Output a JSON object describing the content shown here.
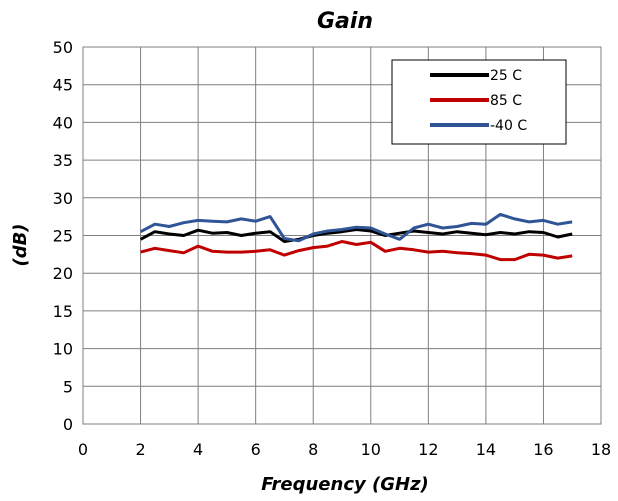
{
  "chart_data": {
    "type": "line",
    "title": "Gain",
    "xlabel": "Frequency (GHz)",
    "ylabel": "(dB)",
    "xlim": [
      0,
      18
    ],
    "ylim": [
      0,
      50
    ],
    "xticks": [
      0,
      2,
      4,
      6,
      8,
      10,
      12,
      14,
      16,
      18
    ],
    "yticks": [
      0,
      5,
      10,
      15,
      20,
      25,
      30,
      35,
      40,
      45,
      50
    ],
    "grid": true,
    "legend_position": "top-right",
    "series": [
      {
        "name": "25 C",
        "color": "#000000",
        "x": [
          2,
          2.5,
          3,
          3.5,
          4,
          4.5,
          5,
          5.5,
          6,
          6.5,
          7,
          7.5,
          8,
          8.5,
          9,
          9.5,
          10,
          10.5,
          11,
          11.5,
          12,
          12.5,
          13,
          13.5,
          14,
          14.5,
          15,
          15.5,
          16,
          16.5,
          17
        ],
        "y": [
          24.5,
          25.5,
          25.2,
          25.0,
          25.7,
          25.3,
          25.4,
          25.0,
          25.3,
          25.5,
          24.2,
          24.5,
          25.0,
          25.3,
          25.5,
          25.8,
          25.6,
          25.0,
          25.3,
          25.6,
          25.4,
          25.2,
          25.5,
          25.3,
          25.1,
          25.4,
          25.2,
          25.5,
          25.4,
          24.8,
          25.2
        ]
      },
      {
        "name": "85 C",
        "color": "#c00000",
        "x": [
          2,
          2.5,
          3,
          3.5,
          4,
          4.5,
          5,
          5.5,
          6,
          6.5,
          7,
          7.5,
          8,
          8.5,
          9,
          9.5,
          10,
          10.5,
          11,
          11.5,
          12,
          12.5,
          13,
          13.5,
          14,
          14.5,
          15,
          15.5,
          16,
          16.5,
          17
        ],
        "y": [
          22.8,
          23.3,
          23.0,
          22.7,
          23.6,
          22.9,
          22.8,
          22.8,
          22.9,
          23.1,
          22.4,
          23.0,
          23.4,
          23.6,
          24.2,
          23.8,
          24.1,
          22.9,
          23.3,
          23.1,
          22.8,
          22.9,
          22.7,
          22.6,
          22.4,
          21.8,
          21.8,
          22.5,
          22.4,
          22.0,
          22.3
        ]
      },
      {
        "name": "-40 C",
        "color": "#2f5597",
        "x": [
          2,
          2.5,
          3,
          3.5,
          4,
          4.5,
          5,
          5.5,
          6,
          6.5,
          7,
          7.5,
          8,
          8.5,
          9,
          9.5,
          10,
          10.5,
          11,
          11.5,
          12,
          12.5,
          13,
          13.5,
          14,
          14.5,
          15,
          15.5,
          16,
          16.5,
          17
        ],
        "y": [
          25.5,
          26.5,
          26.2,
          26.7,
          27.0,
          26.9,
          26.8,
          27.2,
          26.9,
          27.5,
          24.6,
          24.3,
          25.2,
          25.6,
          25.8,
          26.1,
          26.0,
          25.2,
          24.5,
          26.0,
          26.5,
          26.0,
          26.2,
          26.6,
          26.5,
          27.8,
          27.2,
          26.8,
          27.0,
          26.5,
          26.8
        ]
      }
    ]
  }
}
